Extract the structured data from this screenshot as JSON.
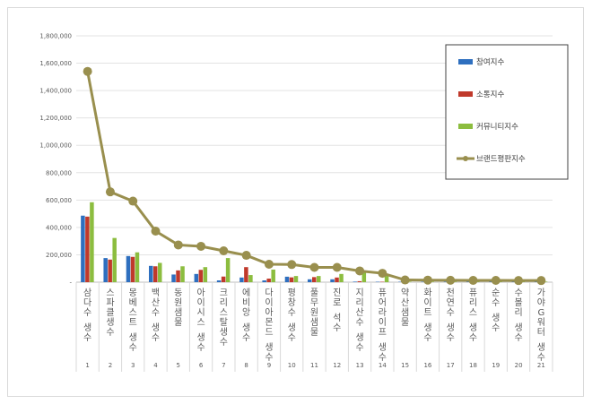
{
  "chart_data": {
    "type": "bar+line",
    "categories": [
      "삼다수 생수",
      "스파클생수",
      "몽베스트 생수",
      "백산수 생수",
      "동원샘물",
      "아이시스 생수",
      "크리스탈생수",
      "에비앙 생수",
      "다이아몬드 생수",
      "평창수 생수",
      "풀무원샘물",
      "진로 석수",
      "지리산수 생수",
      "퓨어라이프 생수",
      "약산샘물",
      "화이트 생수",
      "천연수 생수",
      "퓨리스 생수",
      "순수 생수",
      "수볼리 생수",
      "가야G워터 생수"
    ],
    "ranks": [
      "1",
      "2",
      "3",
      "4",
      "5",
      "6",
      "7",
      "8",
      "9",
      "10",
      "11",
      "12",
      "13",
      "14",
      "15",
      "16",
      "17",
      "18",
      "19",
      "20",
      "21"
    ],
    "series": [
      {
        "name": "참여지수",
        "type": "bar",
        "color": "#2e6fbf",
        "values": [
          486000,
          176000,
          191000,
          119000,
          56000,
          60000,
          13000,
          34000,
          13000,
          40000,
          21000,
          21000,
          4000,
          3000,
          3000,
          3000,
          3000,
          3000,
          3000,
          3000,
          3000
        ]
      },
      {
        "name": "소통지수",
        "type": "bar",
        "color": "#c0392b",
        "values": [
          479000,
          165000,
          185000,
          116000,
          86000,
          90000,
          41000,
          110000,
          26000,
          35000,
          37000,
          34000,
          7000,
          3000,
          2000,
          2000,
          2000,
          2000,
          2000,
          2000,
          2000
        ]
      },
      {
        "name": "커뮤니티지수",
        "type": "bar",
        "color": "#8cbd3f",
        "values": [
          584000,
          323000,
          218000,
          141000,
          116000,
          110000,
          176000,
          52000,
          92000,
          45000,
          45000,
          60000,
          77000,
          54000,
          4000,
          4000,
          4000,
          4000,
          4000,
          4000,
          4000
        ]
      },
      {
        "name": "브랜드평판지수",
        "type": "line",
        "color": "#998f4e",
        "values": [
          1540000,
          660000,
          592000,
          373000,
          272000,
          262000,
          229000,
          196000,
          131000,
          129000,
          108000,
          108000,
          82000,
          65000,
          16000,
          15000,
          14000,
          13000,
          13000,
          12000,
          12000
        ]
      }
    ],
    "ylim": [
      0,
      1800000
    ],
    "yticks": [
      "-",
      "200,000",
      "400,000",
      "600,000",
      "800,000",
      "1,000,000",
      "1,200,000",
      "1,400,000",
      "1,600,000",
      "1,800,000"
    ],
    "grid": true,
    "legend_position": "top-right"
  }
}
